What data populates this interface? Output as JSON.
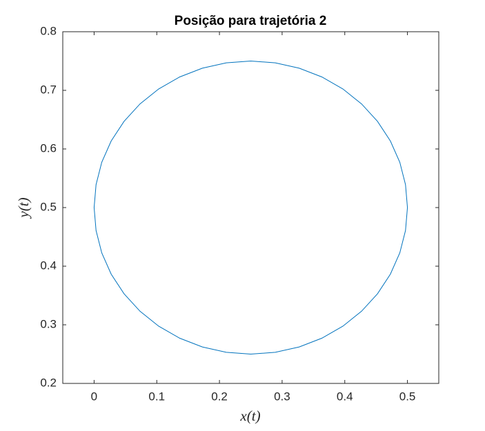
{
  "chart_data": {
    "type": "line",
    "title": "Posição para trajetória 2",
    "xlabel": "x(t)",
    "ylabel": "y(t)",
    "x": [
      0.5,
      0.4969,
      0.4878,
      0.4728,
      0.4523,
      0.4268,
      0.397,
      0.3635,
      0.3273,
      0.2891,
      0.25,
      0.2109,
      0.1727,
      0.1365,
      0.103,
      0.0732,
      0.0477,
      0.0272,
      0.0122,
      0.0031,
      0,
      0.0031,
      0.0122,
      0.0272,
      0.0477,
      0.0732,
      0.103,
      0.1365,
      0.1727,
      0.2109,
      0.25,
      0.2891,
      0.3273,
      0.3635,
      0.397,
      0.4268,
      0.4523,
      0.4728,
      0.4878,
      0.4969,
      0.5
    ],
    "values": [
      0.5,
      0.5391,
      0.5773,
      0.6135,
      0.647,
      0.6768,
      0.7023,
      0.7228,
      0.7378,
      0.7469,
      0.75,
      0.7469,
      0.7378,
      0.7228,
      0.7023,
      0.6768,
      0.647,
      0.6135,
      0.5773,
      0.5391,
      0.5,
      0.4609,
      0.4227,
      0.3865,
      0.353,
      0.3232,
      0.2977,
      0.2772,
      0.2622,
      0.2531,
      0.25,
      0.2531,
      0.2622,
      0.2772,
      0.2977,
      0.3232,
      0.353,
      0.3865,
      0.4227,
      0.4609,
      0.5
    ],
    "color": "#0072bd",
    "xlim": [
      -0.05,
      0.55
    ],
    "xticks": [
      0,
      0.1,
      0.2,
      0.3,
      0.4,
      0.5
    ],
    "ylim": [
      0.2,
      0.8
    ],
    "yticks": [
      0.2,
      0.3,
      0.4,
      0.5,
      0.6,
      0.7,
      0.8
    ],
    "grid": false
  }
}
